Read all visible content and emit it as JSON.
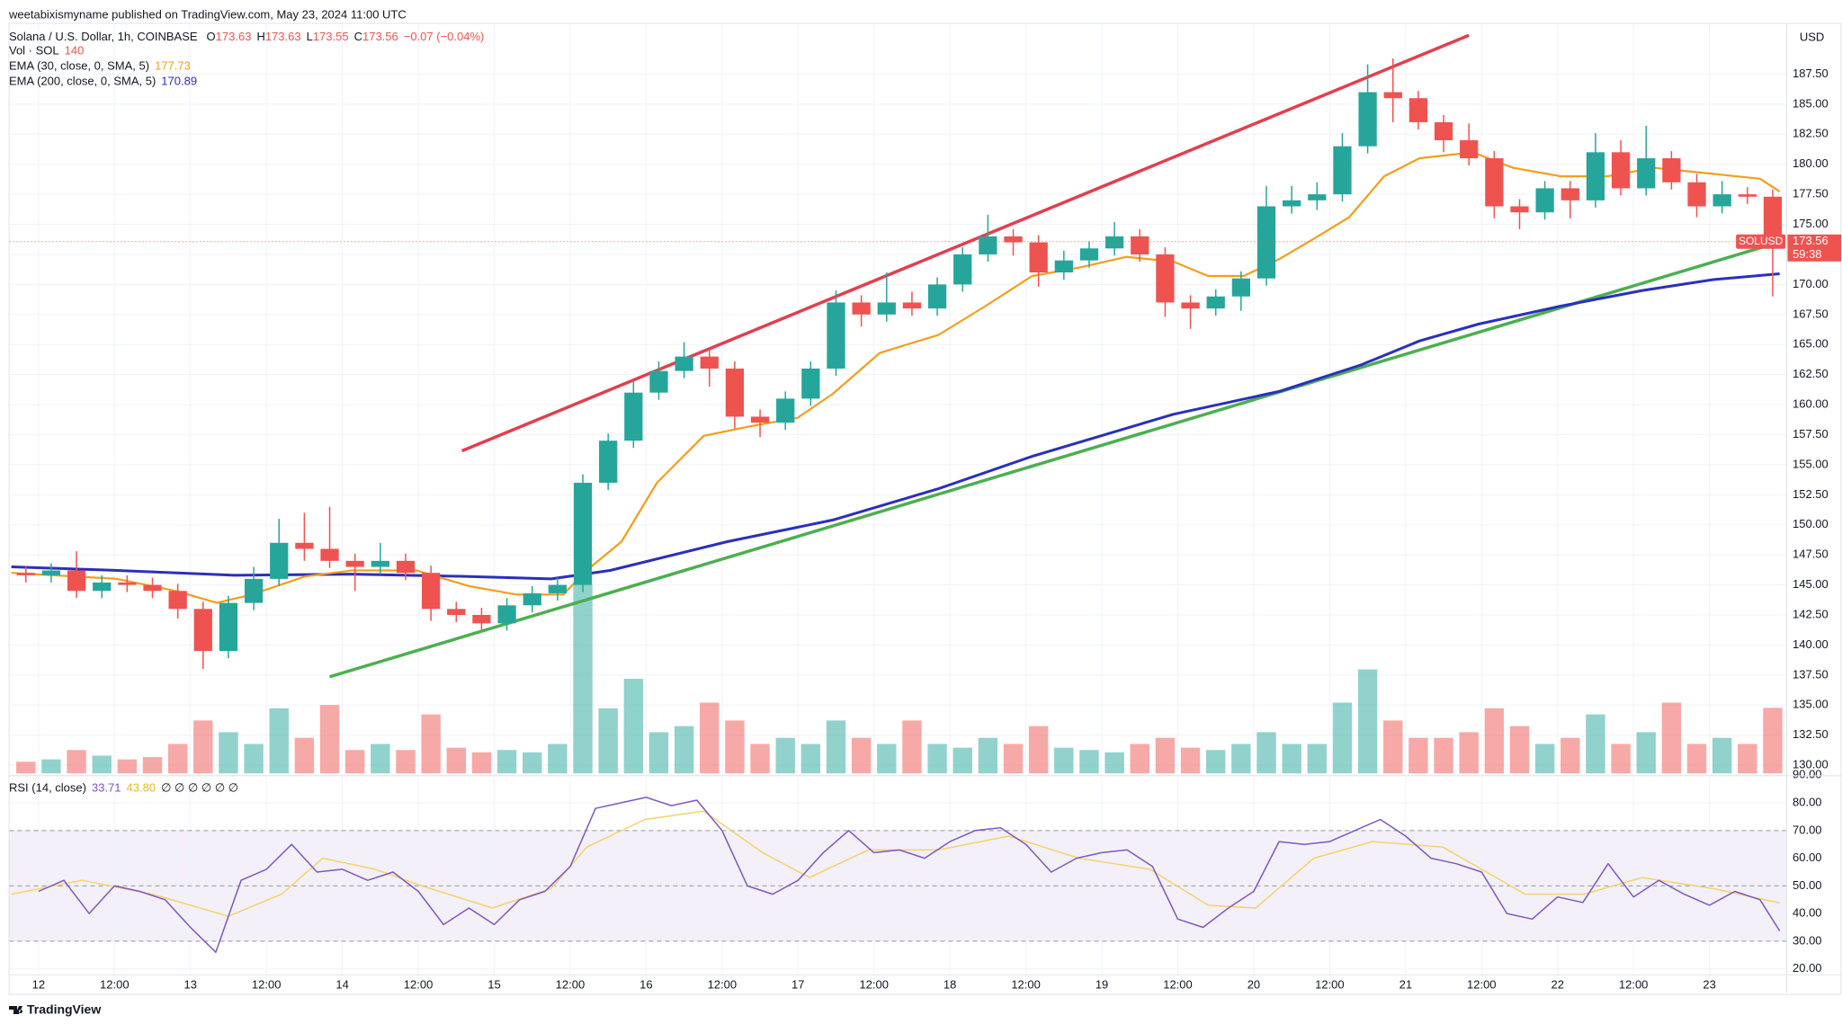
{
  "chart_data": {
    "type": "candlestick",
    "published": "weetabixismyname published on TradingView.com, May 23, 2024 11:00 UTC",
    "symbol": "Solana / U.S. Dollar, 1h, COINBASE",
    "ohlc": [
      {
        "key": "O",
        "value": "173.63"
      },
      {
        "key": "H",
        "value": "173.63"
      },
      {
        "key": "L",
        "value": "173.55"
      },
      {
        "key": "C",
        "value": "173.56"
      }
    ],
    "change": "−0.07 (−0.04%)",
    "currency": "USD",
    "brand": "TradingView",
    "up_color": "#26a69a",
    "down_color": "#ef5350",
    "grid": true,
    "x": [
      -4,
      0,
      4,
      8,
      12,
      16,
      20,
      24,
      28,
      32,
      36,
      40,
      44,
      48,
      52,
      56,
      60,
      64,
      68,
      72,
      76,
      80,
      84,
      88,
      92,
      96,
      100,
      104,
      108,
      112,
      116,
      120,
      124,
      128,
      132,
      136,
      140,
      144,
      148,
      152,
      156,
      160,
      164,
      168,
      172,
      176,
      180,
      184,
      188,
      192,
      196,
      200,
      204,
      208,
      212,
      216,
      220,
      224,
      228,
      232,
      236,
      240,
      244,
      248,
      252,
      256,
      260,
      264,
      268,
      272
    ],
    "open": [
      146.0,
      145.8,
      146.2,
      144.5,
      145.2,
      145.0,
      144.5,
      143.0,
      139.5,
      143.5,
      145.5,
      148.5,
      148.0,
      147.0,
      146.5,
      147.0,
      146.0,
      143.0,
      142.5,
      141.8,
      143.3,
      144.3,
      145.0,
      153.5,
      157.0,
      161.0,
      162.8,
      164.0,
      163.0,
      159.0,
      158.5,
      160.5,
      163.0,
      168.5,
      167.5,
      168.5,
      168.0,
      170.0,
      172.5,
      174.0,
      173.5,
      171.0,
      172.0,
      173.0,
      174.0,
      172.5,
      168.5,
      168.0,
      169.0,
      170.5,
      176.5,
      177.0,
      177.5,
      181.5,
      186.0,
      185.5,
      183.5,
      182.0,
      180.5,
      176.5,
      176.0,
      178.0,
      177.0,
      181.0,
      178.0,
      180.5,
      178.5,
      176.5,
      177.5,
      177.3
    ],
    "high": [
      146.6,
      146.8,
      147.8,
      145.8,
      145.8,
      145.6,
      145.1,
      143.6,
      144.1,
      146.5,
      150.5,
      151.0,
      151.5,
      147.6,
      148.5,
      147.6,
      146.6,
      143.6,
      143.1,
      143.9,
      144.9,
      145.6,
      154.2,
      157.6,
      162.0,
      163.6,
      165.2,
      164.6,
      163.6,
      159.6,
      161.1,
      163.6,
      169.5,
      169.1,
      171.0,
      169.4,
      170.6,
      173.1,
      175.8,
      174.6,
      174.1,
      172.8,
      173.6,
      175.2,
      174.6,
      173.1,
      169.1,
      169.6,
      171.1,
      178.2,
      178.2,
      178.5,
      182.6,
      188.3,
      188.8,
      186.1,
      184.1,
      183.4,
      181.1,
      177.1,
      178.6,
      178.6,
      182.6,
      182.0,
      183.2,
      181.1,
      179.2,
      178.6,
      178.1,
      177.9
    ],
    "low": [
      145.2,
      145.2,
      143.9,
      143.9,
      144.4,
      143.9,
      142.2,
      138.0,
      138.9,
      142.9,
      144.9,
      147.0,
      146.4,
      144.5,
      145.9,
      145.4,
      142.0,
      141.9,
      141.2,
      141.2,
      142.7,
      143.7,
      144.4,
      152.9,
      156.4,
      160.4,
      162.2,
      161.5,
      158.0,
      157.3,
      157.9,
      159.9,
      162.4,
      166.5,
      166.9,
      167.4,
      167.4,
      169.4,
      171.9,
      172.4,
      169.8,
      170.4,
      171.4,
      172.4,
      171.9,
      167.3,
      166.3,
      167.4,
      167.8,
      169.9,
      175.9,
      176.2,
      176.9,
      180.9,
      183.5,
      182.9,
      181.0,
      179.9,
      175.5,
      174.6,
      175.4,
      175.5,
      176.4,
      177.4,
      177.4,
      177.9,
      175.6,
      175.9,
      176.7,
      169.0
    ],
    "close": [
      145.8,
      146.2,
      144.5,
      145.2,
      145.0,
      144.5,
      143.0,
      139.5,
      143.5,
      145.5,
      148.5,
      148.0,
      147.0,
      146.5,
      147.0,
      146.0,
      143.0,
      142.5,
      141.8,
      143.3,
      144.3,
      145.0,
      153.5,
      157.0,
      161.0,
      162.8,
      164.0,
      163.0,
      159.0,
      158.5,
      160.5,
      163.0,
      168.5,
      167.5,
      168.5,
      168.0,
      170.0,
      172.5,
      174.0,
      173.5,
      171.0,
      172.0,
      173.0,
      174.0,
      172.5,
      168.5,
      168.0,
      169.0,
      170.5,
      176.5,
      177.0,
      177.5,
      181.5,
      186.0,
      185.5,
      183.5,
      182.0,
      180.5,
      176.5,
      176.0,
      178.0,
      177.0,
      181.0,
      178.0,
      180.5,
      178.5,
      176.5,
      177.5,
      177.3,
      173.56
    ],
    "volume_name": "Vol · SOL",
    "volume_label": "140",
    "volume": [
      25,
      30,
      50,
      38,
      30,
      35,
      63,
      113,
      88,
      63,
      139,
      76,
      146,
      50,
      63,
      50,
      126,
      55,
      45,
      50,
      45,
      63,
      403,
      139,
      202,
      88,
      101,
      151,
      113,
      63,
      76,
      63,
      113,
      76,
      63,
      113,
      63,
      55,
      76,
      63,
      101,
      55,
      50,
      45,
      63,
      76,
      55,
      50,
      63,
      88,
      63,
      63,
      151,
      222,
      113,
      76,
      76,
      88,
      139,
      101,
      63,
      76,
      126,
      63,
      88,
      151,
      63,
      76,
      63,
      140
    ],
    "volume_ylim": [
      0,
      1600
    ],
    "xlim": [
      -4.6,
      276.2
    ],
    "xticks": [
      {
        "value": 0,
        "label": "12"
      },
      {
        "value": 12,
        "label": "12:00"
      },
      {
        "value": 24,
        "label": "13"
      },
      {
        "value": 36,
        "label": "12:00"
      },
      {
        "value": 48,
        "label": "14"
      },
      {
        "value": 60,
        "label": "12:00"
      },
      {
        "value": 72,
        "label": "15"
      },
      {
        "value": 84,
        "label": "12:00"
      },
      {
        "value": 96,
        "label": "16"
      },
      {
        "value": 108,
        "label": "12:00"
      },
      {
        "value": 120,
        "label": "17"
      },
      {
        "value": 132,
        "label": "12:00"
      },
      {
        "value": 144,
        "label": "18"
      },
      {
        "value": 156,
        "label": "12:00"
      },
      {
        "value": 168,
        "label": "19"
      },
      {
        "value": 180,
        "label": "12:00"
      },
      {
        "value": 192,
        "label": "20"
      },
      {
        "value": 204,
        "label": "12:00"
      },
      {
        "value": 216,
        "label": "21"
      },
      {
        "value": 228,
        "label": "12:00"
      },
      {
        "value": 240,
        "label": "22"
      },
      {
        "value": 252,
        "label": "12:00"
      },
      {
        "value": 264,
        "label": "23"
      }
    ],
    "ylim": [
      129.31,
      191.71
    ],
    "yticks": [
      {
        "value": 130,
        "label": "130.00"
      },
      {
        "value": 132.5,
        "label": "132.50"
      },
      {
        "value": 135,
        "label": "135.00"
      },
      {
        "value": 137.5,
        "label": "137.50"
      },
      {
        "value": 140,
        "label": "140.00"
      },
      {
        "value": 142.5,
        "label": "142.50"
      },
      {
        "value": 145,
        "label": "145.00"
      },
      {
        "value": 147.5,
        "label": "147.50"
      },
      {
        "value": 150,
        "label": "150.00"
      },
      {
        "value": 152.5,
        "label": "152.50"
      },
      {
        "value": 155,
        "label": "155.00"
      },
      {
        "value": 157.5,
        "label": "157.50"
      },
      {
        "value": 160,
        "label": "160.00"
      },
      {
        "value": 162.5,
        "label": "162.50"
      },
      {
        "value": 165,
        "label": "165.00"
      },
      {
        "value": 167.5,
        "label": "167.50"
      },
      {
        "value": 170,
        "label": "170.00"
      },
      {
        "value": 172.5,
        "label": "172.50"
      },
      {
        "value": 175,
        "label": "175.00"
      },
      {
        "value": 177.5,
        "label": "177.50"
      },
      {
        "value": 180,
        "label": "180.00"
      },
      {
        "value": 182.5,
        "label": "182.50"
      },
      {
        "value": 185,
        "label": "185.00"
      },
      {
        "value": 187.5,
        "label": "187.50"
      }
    ],
    "ema30": {
      "name": "EMA (30, close, 0, SMA, 5)",
      "value_label": "177.73",
      "color": "#f59d1b",
      "x": [
        -4.3,
        12.4,
        21.7,
        28.2,
        33.7,
        42.1,
        49.5,
        59.7,
        68.0,
        75.5,
        82.9,
        86.6,
        92.1,
        97.7,
        105.1,
        112.5,
        119.9,
        125.5,
        132.9,
        142.2,
        149.6,
        157.0,
        164.4,
        171.9,
        179.3,
        184.8,
        190.4,
        196.0,
        201.5,
        207.1,
        212.6,
        218.2,
        226.6,
        233.0,
        240.5,
        247.9,
        255.3,
        264.6,
        272.0,
        275.1
      ],
      "values": [
        146.0,
        145.5,
        144.5,
        143.5,
        144.2,
        145.7,
        146.2,
        146.2,
        144.9,
        144.2,
        144.2,
        146.2,
        148.6,
        153.5,
        157.4,
        158.2,
        158.9,
        160.9,
        164.3,
        165.8,
        168.2,
        170.7,
        171.4,
        172.3,
        171.9,
        170.7,
        170.7,
        172.1,
        173.8,
        175.6,
        179.0,
        180.5,
        181.0,
        179.7,
        179.0,
        179.0,
        179.7,
        179.2,
        178.8,
        177.73
      ]
    },
    "ema200": {
      "name": "EMA (200, close, 0, SMA, 5)",
      "value_label": "170.89",
      "color": "#2b2fbd",
      "x": [
        -4.3,
        12.4,
        31.0,
        49.5,
        68.0,
        81.0,
        90.3,
        108.8,
        125.5,
        142.2,
        157.0,
        179.3,
        196.0,
        208.9,
        218.2,
        227.5,
        240.5,
        253.4,
        264.6,
        275.1
      ],
      "values": [
        146.5,
        146.2,
        145.8,
        145.9,
        145.7,
        145.5,
        146.2,
        148.6,
        150.4,
        153.0,
        155.7,
        159.2,
        161.1,
        163.3,
        165.3,
        166.7,
        168.2,
        169.5,
        170.4,
        170.89
      ]
    },
    "trendlines": [
      {
        "color": "#e23f4f",
        "x": [
          66.9,
          226.0
        ],
        "values": [
          156.15,
          190.73
        ]
      },
      {
        "color": "#4caf50",
        "x": [
          46.0,
          274.2
        ],
        "values": [
          137.35,
          173.39
        ]
      }
    ],
    "price_tag": {
      "symbol": "SOLUSD",
      "value": 173.56,
      "countdown": "59:38"
    },
    "rsi": {
      "name": "RSI (14, close)",
      "value_label": "33.71",
      "ma_label": "43.80",
      "extra": "∅ ∅ ∅ ∅ ∅ ∅",
      "color": "#7e57c2",
      "ma_color": "#f3d36b",
      "band_color": "#7e57c2",
      "x": [
        0,
        4,
        8,
        12,
        16,
        20,
        24,
        28,
        32,
        36,
        40,
        44,
        48,
        52,
        56,
        60,
        64,
        68,
        72,
        76,
        80,
        84,
        88,
        92,
        96,
        100,
        104,
        108,
        112,
        116,
        120,
        124,
        128,
        132,
        136,
        140,
        144,
        148,
        152,
        156,
        160,
        164,
        168,
        172,
        176,
        180,
        184,
        188,
        192,
        196,
        200,
        204,
        208,
        212,
        216,
        220,
        224,
        228,
        232,
        236,
        240,
        244,
        248,
        252,
        256,
        260,
        264,
        268,
        272,
        275.1
      ],
      "values": [
        48,
        52,
        40,
        50,
        48,
        45,
        35,
        26,
        52,
        56,
        65,
        55,
        56,
        52,
        55,
        48,
        36,
        42,
        36,
        45,
        48,
        57,
        78,
        80,
        82,
        79,
        81,
        70,
        50,
        47,
        52,
        62,
        70,
        62,
        63,
        60,
        66,
        70,
        71,
        65,
        55,
        60,
        62,
        63,
        57,
        38,
        35,
        42,
        48,
        66,
        65,
        66,
        70,
        74,
        68,
        60,
        58,
        55,
        40,
        38,
        46,
        44,
        58,
        46,
        52,
        47,
        43,
        48,
        45,
        33.71
      ],
      "ma_x": [
        -4.3,
        6.9,
        18.0,
        30.0,
        38.4,
        44.9,
        53.2,
        60.6,
        71.7,
        81.0,
        86.6,
        95.8,
        105.1,
        114.4,
        121.8,
        131.1,
        142.2,
        153.3,
        164.4,
        175.6,
        184.8,
        192.3,
        201.5,
        210.8,
        221.9,
        234.9,
        244.2,
        253.4,
        264.6,
        275.1
      ],
      "ma_values": [
        47,
        52,
        47,
        39,
        47,
        60,
        56,
        50,
        42,
        49,
        64,
        74,
        77,
        62,
        53,
        63,
        63,
        68,
        60,
        56,
        43,
        42,
        60,
        66,
        64,
        47,
        47,
        53,
        49,
        43.8
      ],
      "ylim": [
        17.87,
        89.36
      ],
      "yticks": [
        {
          "value": 20,
          "label": "20.00"
        },
        {
          "value": 30,
          "label": "30.00"
        },
        {
          "value": 40,
          "label": "40.00"
        },
        {
          "value": 50,
          "label": "50.00"
        },
        {
          "value": 60,
          "label": "60.00"
        },
        {
          "value": 70,
          "label": "70.00"
        },
        {
          "value": 80,
          "label": "80.00"
        },
        {
          "value": 90,
          "label": "90.00"
        }
      ],
      "bands": [
        30,
        50,
        70
      ]
    }
  }
}
